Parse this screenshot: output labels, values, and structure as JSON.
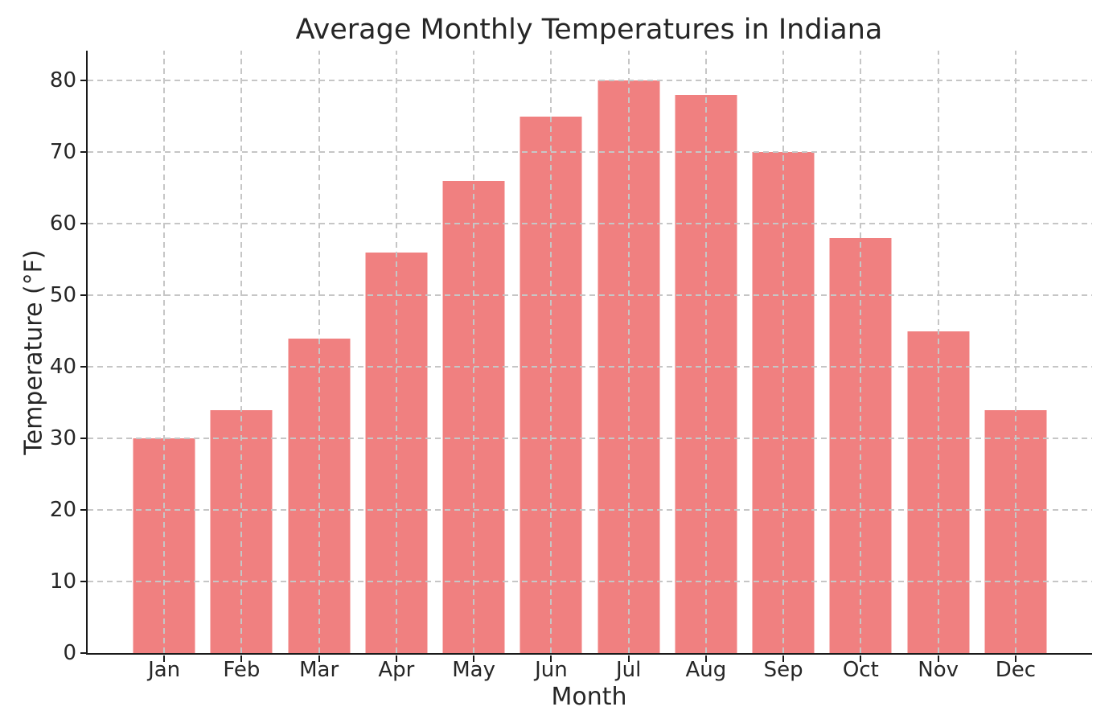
{
  "chart_data": {
    "type": "bar",
    "title": "Average Monthly Temperatures in Indiana",
    "xlabel": "Month",
    "ylabel": "Temperature (°F)",
    "categories": [
      "Jan",
      "Feb",
      "Mar",
      "Apr",
      "May",
      "Jun",
      "Jul",
      "Aug",
      "Sep",
      "Oct",
      "Nov",
      "Dec"
    ],
    "values": [
      30,
      34,
      44,
      56,
      66,
      75,
      80,
      78,
      70,
      58,
      45,
      34
    ],
    "yticks": [
      0,
      10,
      20,
      30,
      40,
      50,
      60,
      70,
      80
    ],
    "ylim": [
      0,
      84.2
    ],
    "legend": "none",
    "grid": "dashed gridlines on both axes, drawn above bars",
    "bar_color": "#F08080",
    "grid_color": "#c6c6c6",
    "axis_color": "#1a1a1a",
    "text_color": "#262626",
    "background_color": "#ffffff"
  }
}
